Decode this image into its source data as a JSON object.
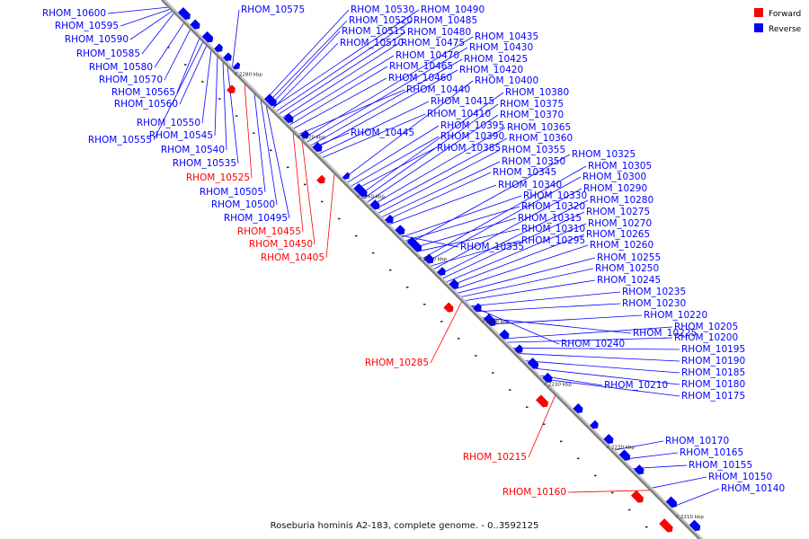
{
  "caption": "Roseburia hominis A2-183, complete genome. - 0..3592125",
  "legend": [
    {
      "label": "Forward",
      "color": "#ff0000"
    },
    {
      "label": "Reverse",
      "color": "#0000ff"
    }
  ],
  "colors": {
    "forward": "#ff0000",
    "reverse": "#0000ff",
    "backbone": "#808080"
  },
  "ticks": [
    "2280 kbp",
    "2270 kbp",
    "2260 kbp",
    "2250 kbp",
    "2240 kbp",
    "2230 kbp",
    "2220 kbp",
    "2210 kbp"
  ],
  "genes": [
    {
      "name": "RHOM_10600",
      "strand": "reverse"
    },
    {
      "name": "RHOM_10595",
      "strand": "reverse"
    },
    {
      "name": "RHOM_10590",
      "strand": "reverse"
    },
    {
      "name": "RHOM_10585",
      "strand": "reverse"
    },
    {
      "name": "RHOM_10580",
      "strand": "reverse"
    },
    {
      "name": "RHOM_10570",
      "strand": "reverse"
    },
    {
      "name": "RHOM_10565",
      "strand": "reverse"
    },
    {
      "name": "RHOM_10560",
      "strand": "reverse"
    },
    {
      "name": "RHOM_10550",
      "strand": "reverse"
    },
    {
      "name": "RHOM_10545",
      "strand": "reverse"
    },
    {
      "name": "RHOM_10555",
      "strand": "reverse"
    },
    {
      "name": "RHOM_10540",
      "strand": "reverse"
    },
    {
      "name": "RHOM_10535",
      "strand": "reverse"
    },
    {
      "name": "RHOM_10525",
      "strand": "forward"
    },
    {
      "name": "RHOM_10505",
      "strand": "reverse"
    },
    {
      "name": "RHOM_10500",
      "strand": "reverse"
    },
    {
      "name": "RHOM_10495",
      "strand": "reverse"
    },
    {
      "name": "RHOM_10455",
      "strand": "forward"
    },
    {
      "name": "RHOM_10450",
      "strand": "forward"
    },
    {
      "name": "RHOM_10405",
      "strand": "forward"
    },
    {
      "name": "RHOM_10575",
      "strand": "reverse"
    },
    {
      "name": "RHOM_10530",
      "strand": "reverse"
    },
    {
      "name": "RHOM_10490",
      "strand": "reverse"
    },
    {
      "name": "RHOM_10520",
      "strand": "reverse"
    },
    {
      "name": "RHOM_10485",
      "strand": "reverse"
    },
    {
      "name": "RHOM_10515",
      "strand": "reverse"
    },
    {
      "name": "RHOM_10480",
      "strand": "reverse"
    },
    {
      "name": "RHOM_10435",
      "strand": "reverse"
    },
    {
      "name": "RHOM_10510",
      "strand": "reverse"
    },
    {
      "name": "RHOM_10475",
      "strand": "reverse"
    },
    {
      "name": "RHOM_10430",
      "strand": "reverse"
    },
    {
      "name": "RHOM_10470",
      "strand": "reverse"
    },
    {
      "name": "RHOM_10425",
      "strand": "reverse"
    },
    {
      "name": "RHOM_10465",
      "strand": "reverse"
    },
    {
      "name": "RHOM_10420",
      "strand": "reverse"
    },
    {
      "name": "RHOM_10460",
      "strand": "reverse"
    },
    {
      "name": "RHOM_10400",
      "strand": "reverse"
    },
    {
      "name": "RHOM_10440",
      "strand": "reverse"
    },
    {
      "name": "RHOM_10380",
      "strand": "reverse"
    },
    {
      "name": "RHOM_10415",
      "strand": "reverse"
    },
    {
      "name": "RHOM_10375",
      "strand": "reverse"
    },
    {
      "name": "RHOM_10410",
      "strand": "reverse"
    },
    {
      "name": "RHOM_10370",
      "strand": "reverse"
    },
    {
      "name": "RHOM_10395",
      "strand": "reverse"
    },
    {
      "name": "RHOM_10365",
      "strand": "reverse"
    },
    {
      "name": "RHOM_10445",
      "strand": "reverse"
    },
    {
      "name": "RHOM_10390",
      "strand": "reverse"
    },
    {
      "name": "RHOM_10360",
      "strand": "reverse"
    },
    {
      "name": "RHOM_10385",
      "strand": "reverse"
    },
    {
      "name": "RHOM_10355",
      "strand": "reverse"
    },
    {
      "name": "RHOM_10325",
      "strand": "reverse"
    },
    {
      "name": "RHOM_10350",
      "strand": "reverse"
    },
    {
      "name": "RHOM_10305",
      "strand": "reverse"
    },
    {
      "name": "RHOM_10345",
      "strand": "reverse"
    },
    {
      "name": "RHOM_10300",
      "strand": "reverse"
    },
    {
      "name": "RHOM_10340",
      "strand": "reverse"
    },
    {
      "name": "RHOM_10290",
      "strand": "reverse"
    },
    {
      "name": "RHOM_10330",
      "strand": "reverse"
    },
    {
      "name": "RHOM_10280",
      "strand": "reverse"
    },
    {
      "name": "RHOM_10320",
      "strand": "reverse"
    },
    {
      "name": "RHOM_10275",
      "strand": "reverse"
    },
    {
      "name": "RHOM_10315",
      "strand": "reverse"
    },
    {
      "name": "RHOM_10270",
      "strand": "reverse"
    },
    {
      "name": "RHOM_10310",
      "strand": "reverse"
    },
    {
      "name": "RHOM_10265",
      "strand": "reverse"
    },
    {
      "name": "RHOM_10335",
      "strand": "reverse"
    },
    {
      "name": "RHOM_10295",
      "strand": "reverse"
    },
    {
      "name": "RHOM_10260",
      "strand": "reverse"
    },
    {
      "name": "RHOM_10255",
      "strand": "reverse"
    },
    {
      "name": "RHOM_10250",
      "strand": "reverse"
    },
    {
      "name": "RHOM_10245",
      "strand": "reverse"
    },
    {
      "name": "RHOM_10235",
      "strand": "reverse"
    },
    {
      "name": "RHOM_10230",
      "strand": "reverse"
    },
    {
      "name": "RHOM_10220",
      "strand": "reverse"
    },
    {
      "name": "RHOM_10205",
      "strand": "reverse"
    },
    {
      "name": "RHOM_10225",
      "strand": "reverse"
    },
    {
      "name": "RHOM_10200",
      "strand": "reverse"
    },
    {
      "name": "RHOM_10240",
      "strand": "reverse"
    },
    {
      "name": "RHOM_10195",
      "strand": "reverse"
    },
    {
      "name": "RHOM_10285",
      "strand": "forward"
    },
    {
      "name": "RHOM_10190",
      "strand": "reverse"
    },
    {
      "name": "RHOM_10185",
      "strand": "reverse"
    },
    {
      "name": "RHOM_10210",
      "strand": "reverse"
    },
    {
      "name": "RHOM_10180",
      "strand": "reverse"
    },
    {
      "name": "RHOM_10175",
      "strand": "reverse"
    },
    {
      "name": "RHOM_10170",
      "strand": "reverse"
    },
    {
      "name": "RHOM_10215",
      "strand": "forward"
    },
    {
      "name": "RHOM_10165",
      "strand": "reverse"
    },
    {
      "name": "RHOM_10155",
      "strand": "reverse"
    },
    {
      "name": "RHOM_10150",
      "strand": "reverse"
    },
    {
      "name": "RHOM_10140",
      "strand": "reverse"
    },
    {
      "name": "RHOM_10160",
      "strand": "forward"
    }
  ]
}
